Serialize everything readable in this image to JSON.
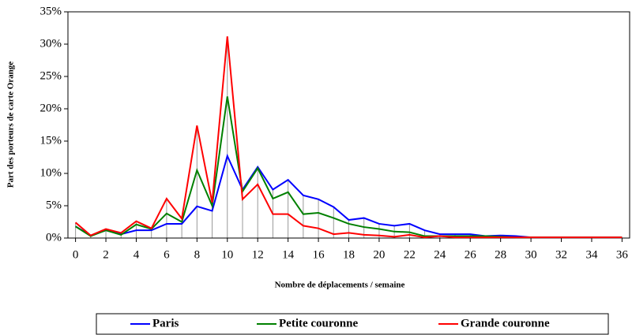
{
  "chart_data": {
    "type": "line",
    "xlabel": "Nombre de déplacements / semaine",
    "ylabel": "Part des porteurs de carte Orange",
    "x": [
      0,
      1,
      2,
      3,
      4,
      5,
      6,
      7,
      8,
      9,
      10,
      11,
      12,
      13,
      14,
      15,
      16,
      17,
      18,
      19,
      20,
      21,
      22,
      23,
      24,
      25,
      26,
      27,
      28,
      29,
      30,
      31,
      32,
      33,
      34,
      35,
      36
    ],
    "series": [
      {
        "name": "Paris",
        "color": "#0000ff",
        "values": [
          1.8,
          0.4,
          1.2,
          0.6,
          1.2,
          1.2,
          2.2,
          2.2,
          4.9,
          4.2,
          12.7,
          7.5,
          11,
          7.5,
          9,
          6.6,
          6,
          4.8,
          2.8,
          3.1,
          2.2,
          1.9,
          2.2,
          1.2,
          0.6,
          0.6,
          0.6,
          0.3,
          0.4,
          0.3,
          0.1,
          0.1,
          0.1,
          0.1,
          0.1,
          0.1,
          0.1
        ]
      },
      {
        "name": "Petite couronne",
        "color": "#008000",
        "values": [
          1.8,
          0.3,
          1.2,
          0.5,
          2.1,
          1.4,
          3.8,
          2.5,
          10.5,
          5,
          21.9,
          7.2,
          10.8,
          6.1,
          7.1,
          3.7,
          3.9,
          3.1,
          2.2,
          1.7,
          1.4,
          1.0,
          0.9,
          0.3,
          0.3,
          0.3,
          0.3,
          0.3,
          0.2,
          0.1,
          0.1,
          0.1,
          0.1,
          0.1,
          0.1,
          0.1,
          0.1
        ]
      },
      {
        "name": "Grande couronne",
        "color": "#ff0000",
        "values": [
          2.4,
          0.4,
          1.4,
          0.8,
          2.6,
          1.5,
          6.1,
          3,
          17.4,
          5.5,
          31.2,
          6,
          8.3,
          3.7,
          3.7,
          1.9,
          1.5,
          0.6,
          0.8,
          0.5,
          0.4,
          0.2,
          0.5,
          0.1,
          0.3,
          0.1,
          0.1,
          0.1,
          0.1,
          0.1,
          0.1,
          0.1,
          0.1,
          0.1,
          0.1,
          0.1,
          0.1
        ]
      }
    ],
    "xlim": [
      -0.5,
      36.5
    ],
    "xticks": [
      0,
      2,
      4,
      6,
      8,
      10,
      12,
      14,
      16,
      18,
      20,
      22,
      24,
      26,
      28,
      30,
      32,
      34,
      36
    ],
    "ylim": [
      0,
      35
    ],
    "yticks": [
      {
        "value": 0,
        "label": "0%"
      },
      {
        "value": 5,
        "label": "5%"
      },
      {
        "value": 10,
        "label": "10%"
      },
      {
        "value": 15,
        "label": "15%"
      },
      {
        "value": 20,
        "label": "20%"
      },
      {
        "value": 25,
        "label": "25%"
      },
      {
        "value": 30,
        "label": "30%"
      },
      {
        "value": 35,
        "label": "35%"
      }
    ],
    "legend": "bottom"
  }
}
